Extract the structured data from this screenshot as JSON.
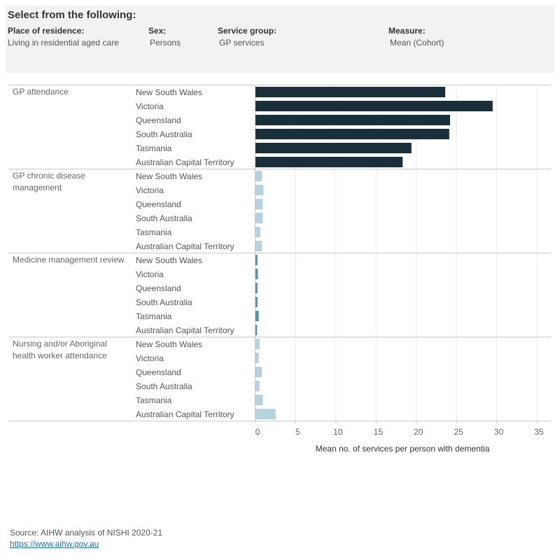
{
  "filters": {
    "heading": "Select from the following:",
    "items": [
      {
        "label": "Place of residence:",
        "value": "Living in residential aged care"
      },
      {
        "label": "Sex:",
        "value": "Persons"
      },
      {
        "label": "Service group:",
        "value": "GP services"
      },
      {
        "label": "Measure:",
        "value": "Mean (Cohort)"
      }
    ]
  },
  "source": {
    "text": "Source: AIHW analysis of NISHI 2020-21",
    "link": "https://www.aihw.gov.au"
  },
  "chart_data": {
    "type": "bar",
    "orientation": "horizontal",
    "xlabel": "Mean no. of services per person with dementia",
    "xlim": [
      0,
      36
    ],
    "xticks": [
      0,
      5,
      10,
      15,
      20,
      25,
      30,
      35
    ],
    "grid": true,
    "groups": [
      {
        "name": "GP attendance",
        "color": "#1b2f3a",
        "categories": [
          "New South Wales",
          "Victoria",
          "Queensland",
          "South Australia",
          "Tasmania",
          "Australian Capital Territory"
        ],
        "values": [
          23.6,
          29.5,
          24.2,
          24.1,
          19.4,
          18.3
        ]
      },
      {
        "name": "GP chronic disease management",
        "color": "#b5d3de",
        "categories": [
          "New South Wales",
          "Victoria",
          "Queensland",
          "South Australia",
          "Tasmania",
          "Australian Capital Territory"
        ],
        "values": [
          0.8,
          1.0,
          0.9,
          0.9,
          0.6,
          0.8
        ]
      },
      {
        "name": "Medicine management review",
        "color": "#4b97ad",
        "categories": [
          "New South Wales",
          "Victoria",
          "Queensland",
          "South Australia",
          "Tasmania",
          "Australian Capital Territory"
        ],
        "values": [
          0.25,
          0.3,
          0.25,
          0.25,
          0.4,
          0.2
        ]
      },
      {
        "name": "Nursing and/or Aboriginal health worker attendance",
        "color": "#b5d3de",
        "categories": [
          "New South Wales",
          "Victoria",
          "Queensland",
          "South Australia",
          "Tasmania",
          "Australian Capital Territory"
        ],
        "values": [
          0.5,
          0.4,
          0.8,
          0.5,
          0.9,
          2.5
        ]
      }
    ]
  }
}
